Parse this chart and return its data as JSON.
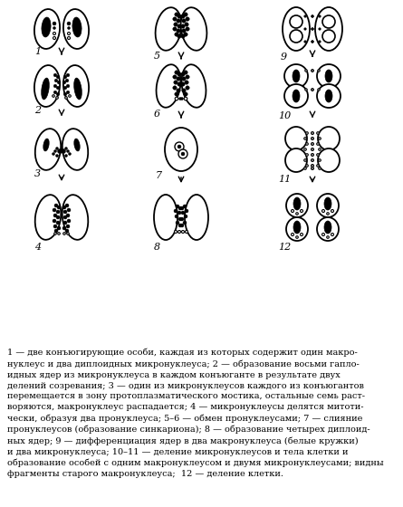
{
  "figure_size": [
    4.45,
    5.6
  ],
  "dpi": 100,
  "background_color": "#ffffff",
  "caption_text": "1 — две конъюгирующие особи, каждая из которых содержит один макро-\nнуклеус и два диплоидных микронуклеуса; 2 — образование восьми гапло-\nидных ядер из микронуклеуса в каждом конъюганте в результате двух\nделений созревания; 3 — один из микронуклеусов каждого из конъюгантов\nперемещается в зону протоплазматического мостика, остальные семь раст-\nворяются, макронуклеус распадается; 4 — микронуклеусы делятся митоти-\nчески, образуя два пронуклеуса; 5–6 — обмен пронуклеусами; 7 — слияние\nпронуклеусов (образование синкариона); 8 — образование четырех диплоид-\nных ядер; 9 — дифференциация ядер в два макронуклеуса (белые кружки)\nи два микронуклеуса; 10–11 — деление микронуклеусов и тела клетки и\nобразование особей с одним макронуклеусом и двумя микронуклеусами; видны\nфрагменты старого макронуклеуса;  12 — деление клетки.",
  "font_size_caption": 7.0,
  "font_size_label": 8
}
